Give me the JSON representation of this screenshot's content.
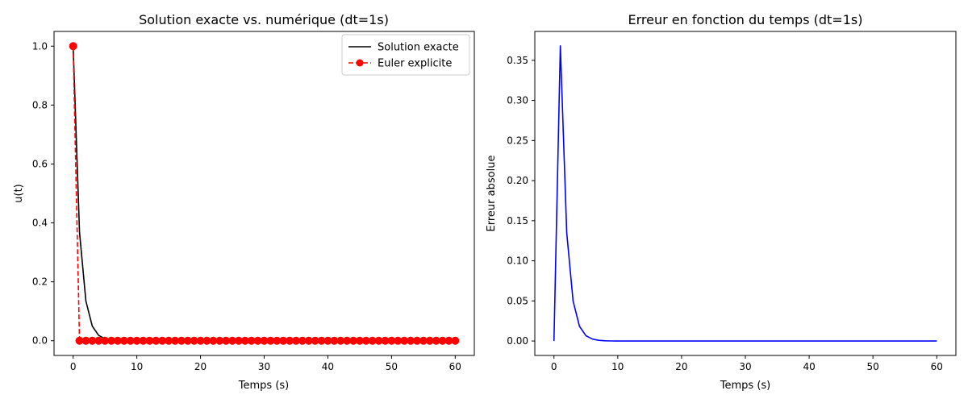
{
  "chart_data": [
    {
      "type": "line",
      "title": "Solution exacte vs. numérique (dt=1s)",
      "xlabel": "Temps (s)",
      "ylabel": "u(t)",
      "xlim": [
        -3,
        63
      ],
      "ylim": [
        -0.05,
        1.05
      ],
      "xticks": [
        0,
        10,
        20,
        30,
        40,
        50,
        60
      ],
      "yticks": [
        0.0,
        0.2,
        0.4,
        0.6,
        0.8,
        1.0
      ],
      "legend": "top-right",
      "grid": false,
      "series": [
        {
          "name": "Solution exacte",
          "color": "#000000",
          "style": "solid",
          "x": [
            0,
            1,
            2,
            3,
            4,
            5,
            6,
            7,
            8,
            9,
            10,
            11,
            12,
            13,
            14,
            15,
            16,
            17,
            18,
            19,
            20,
            21,
            22,
            23,
            24,
            25,
            26,
            27,
            28,
            29,
            30,
            31,
            32,
            33,
            34,
            35,
            36,
            37,
            38,
            39,
            40,
            41,
            42,
            43,
            44,
            45,
            46,
            47,
            48,
            49,
            50,
            51,
            52,
            53,
            54,
            55,
            56,
            57,
            58,
            59,
            60
          ],
          "y": [
            1.0,
            0.368,
            0.135,
            0.0498,
            0.0183,
            0.0067,
            0.0025,
            0.0009,
            0.0003,
            0.0001,
            0.0,
            0.0,
            0.0,
            0.0,
            0.0,
            0.0,
            0.0,
            0.0,
            0.0,
            0.0,
            0.0,
            0.0,
            0.0,
            0.0,
            0.0,
            0.0,
            0.0,
            0.0,
            0.0,
            0.0,
            0.0,
            0.0,
            0.0,
            0.0,
            0.0,
            0.0,
            0.0,
            0.0,
            0.0,
            0.0,
            0.0,
            0.0,
            0.0,
            0.0,
            0.0,
            0.0,
            0.0,
            0.0,
            0.0,
            0.0,
            0.0,
            0.0,
            0.0,
            0.0,
            0.0,
            0.0,
            0.0,
            0.0,
            0.0,
            0.0,
            0.0
          ]
        },
        {
          "name": "Euler explicite",
          "color": "#ff0000",
          "style": "dashed",
          "marker": "circle",
          "x": [
            0,
            1,
            2,
            3,
            4,
            5,
            6,
            7,
            8,
            9,
            10,
            11,
            12,
            13,
            14,
            15,
            16,
            17,
            18,
            19,
            20,
            21,
            22,
            23,
            24,
            25,
            26,
            27,
            28,
            29,
            30,
            31,
            32,
            33,
            34,
            35,
            36,
            37,
            38,
            39,
            40,
            41,
            42,
            43,
            44,
            45,
            46,
            47,
            48,
            49,
            50,
            51,
            52,
            53,
            54,
            55,
            56,
            57,
            58,
            59,
            60
          ],
          "y": [
            1.0,
            0.0,
            0.0,
            0.0,
            0.0,
            0.0,
            0.0,
            0.0,
            0.0,
            0.0,
            0.0,
            0.0,
            0.0,
            0.0,
            0.0,
            0.0,
            0.0,
            0.0,
            0.0,
            0.0,
            0.0,
            0.0,
            0.0,
            0.0,
            0.0,
            0.0,
            0.0,
            0.0,
            0.0,
            0.0,
            0.0,
            0.0,
            0.0,
            0.0,
            0.0,
            0.0,
            0.0,
            0.0,
            0.0,
            0.0,
            0.0,
            0.0,
            0.0,
            0.0,
            0.0,
            0.0,
            0.0,
            0.0,
            0.0,
            0.0,
            0.0,
            0.0,
            0.0,
            0.0,
            0.0,
            0.0,
            0.0,
            0.0,
            0.0,
            0.0,
            0.0
          ]
        }
      ]
    },
    {
      "type": "line",
      "title": "Erreur en fonction du temps (dt=1s)",
      "xlabel": "Temps (s)",
      "ylabel": "Erreur absolue",
      "xlim": [
        -3,
        63
      ],
      "ylim": [
        -0.018,
        0.386
      ],
      "xticks": [
        0,
        10,
        20,
        30,
        40,
        50,
        60
      ],
      "yticks": [
        0.0,
        0.05,
        0.1,
        0.15,
        0.2,
        0.25,
        0.3,
        0.35
      ],
      "grid": false,
      "series": [
        {
          "color": "#0000ff",
          "style": "solid",
          "x": [
            0,
            1,
            2,
            3,
            4,
            5,
            6,
            7,
            8,
            9,
            10,
            11,
            12,
            13,
            14,
            15,
            16,
            17,
            18,
            19,
            20,
            21,
            22,
            23,
            24,
            25,
            26,
            27,
            28,
            29,
            30,
            31,
            32,
            33,
            34,
            35,
            36,
            37,
            38,
            39,
            40,
            41,
            42,
            43,
            44,
            45,
            46,
            47,
            48,
            49,
            50,
            51,
            52,
            53,
            54,
            55,
            56,
            57,
            58,
            59,
            60
          ],
          "y": [
            0.0,
            0.368,
            0.135,
            0.0498,
            0.0183,
            0.0067,
            0.0025,
            0.0009,
            0.0003,
            0.0001,
            0.0,
            0.0,
            0.0,
            0.0,
            0.0,
            0.0,
            0.0,
            0.0,
            0.0,
            0.0,
            0.0,
            0.0,
            0.0,
            0.0,
            0.0,
            0.0,
            0.0,
            0.0,
            0.0,
            0.0,
            0.0,
            0.0,
            0.0,
            0.0,
            0.0,
            0.0,
            0.0,
            0.0,
            0.0,
            0.0,
            0.0,
            0.0,
            0.0,
            0.0,
            0.0,
            0.0,
            0.0,
            0.0,
            0.0,
            0.0,
            0.0,
            0.0,
            0.0,
            0.0,
            0.0,
            0.0,
            0.0,
            0.0,
            0.0,
            0.0,
            0.0
          ]
        }
      ]
    }
  ]
}
